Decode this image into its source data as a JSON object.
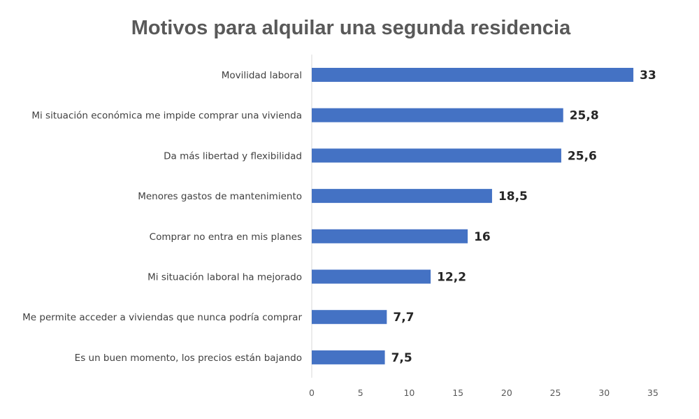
{
  "chart_data": {
    "type": "bar",
    "orientation": "horizontal",
    "title": "Motivos para alquilar una segunda residencia",
    "xlabel": "",
    "ylabel": "",
    "categories": [
      "Movilidad laboral",
      "Mi situación económica me impide comprar una vivienda",
      "Da más libertad y flexibilidad",
      "Menores gastos de mantenimiento",
      "Comprar no entra en mis planes",
      "Mi situación laboral ha mejorado",
      "Me permite acceder a viviendas que nunca podría comprar",
      "Es un buen momento, los precios están bajando"
    ],
    "values": [
      33,
      25.8,
      25.6,
      18.5,
      16,
      12.2,
      7.7,
      7.5
    ],
    "value_labels": [
      "33",
      "25,8",
      "25,6",
      "18,5",
      "16",
      "12,2",
      "7,7",
      "7,5"
    ],
    "xlim": [
      0,
      35
    ],
    "x_ticks": [
      0,
      5,
      10,
      15,
      20,
      25,
      30,
      35
    ],
    "x_tick_labels": [
      "0",
      "5",
      "10",
      "15",
      "20",
      "25",
      "30",
      "35"
    ],
    "grid": false,
    "legend": "none",
    "bar_color": "#4472C4"
  }
}
